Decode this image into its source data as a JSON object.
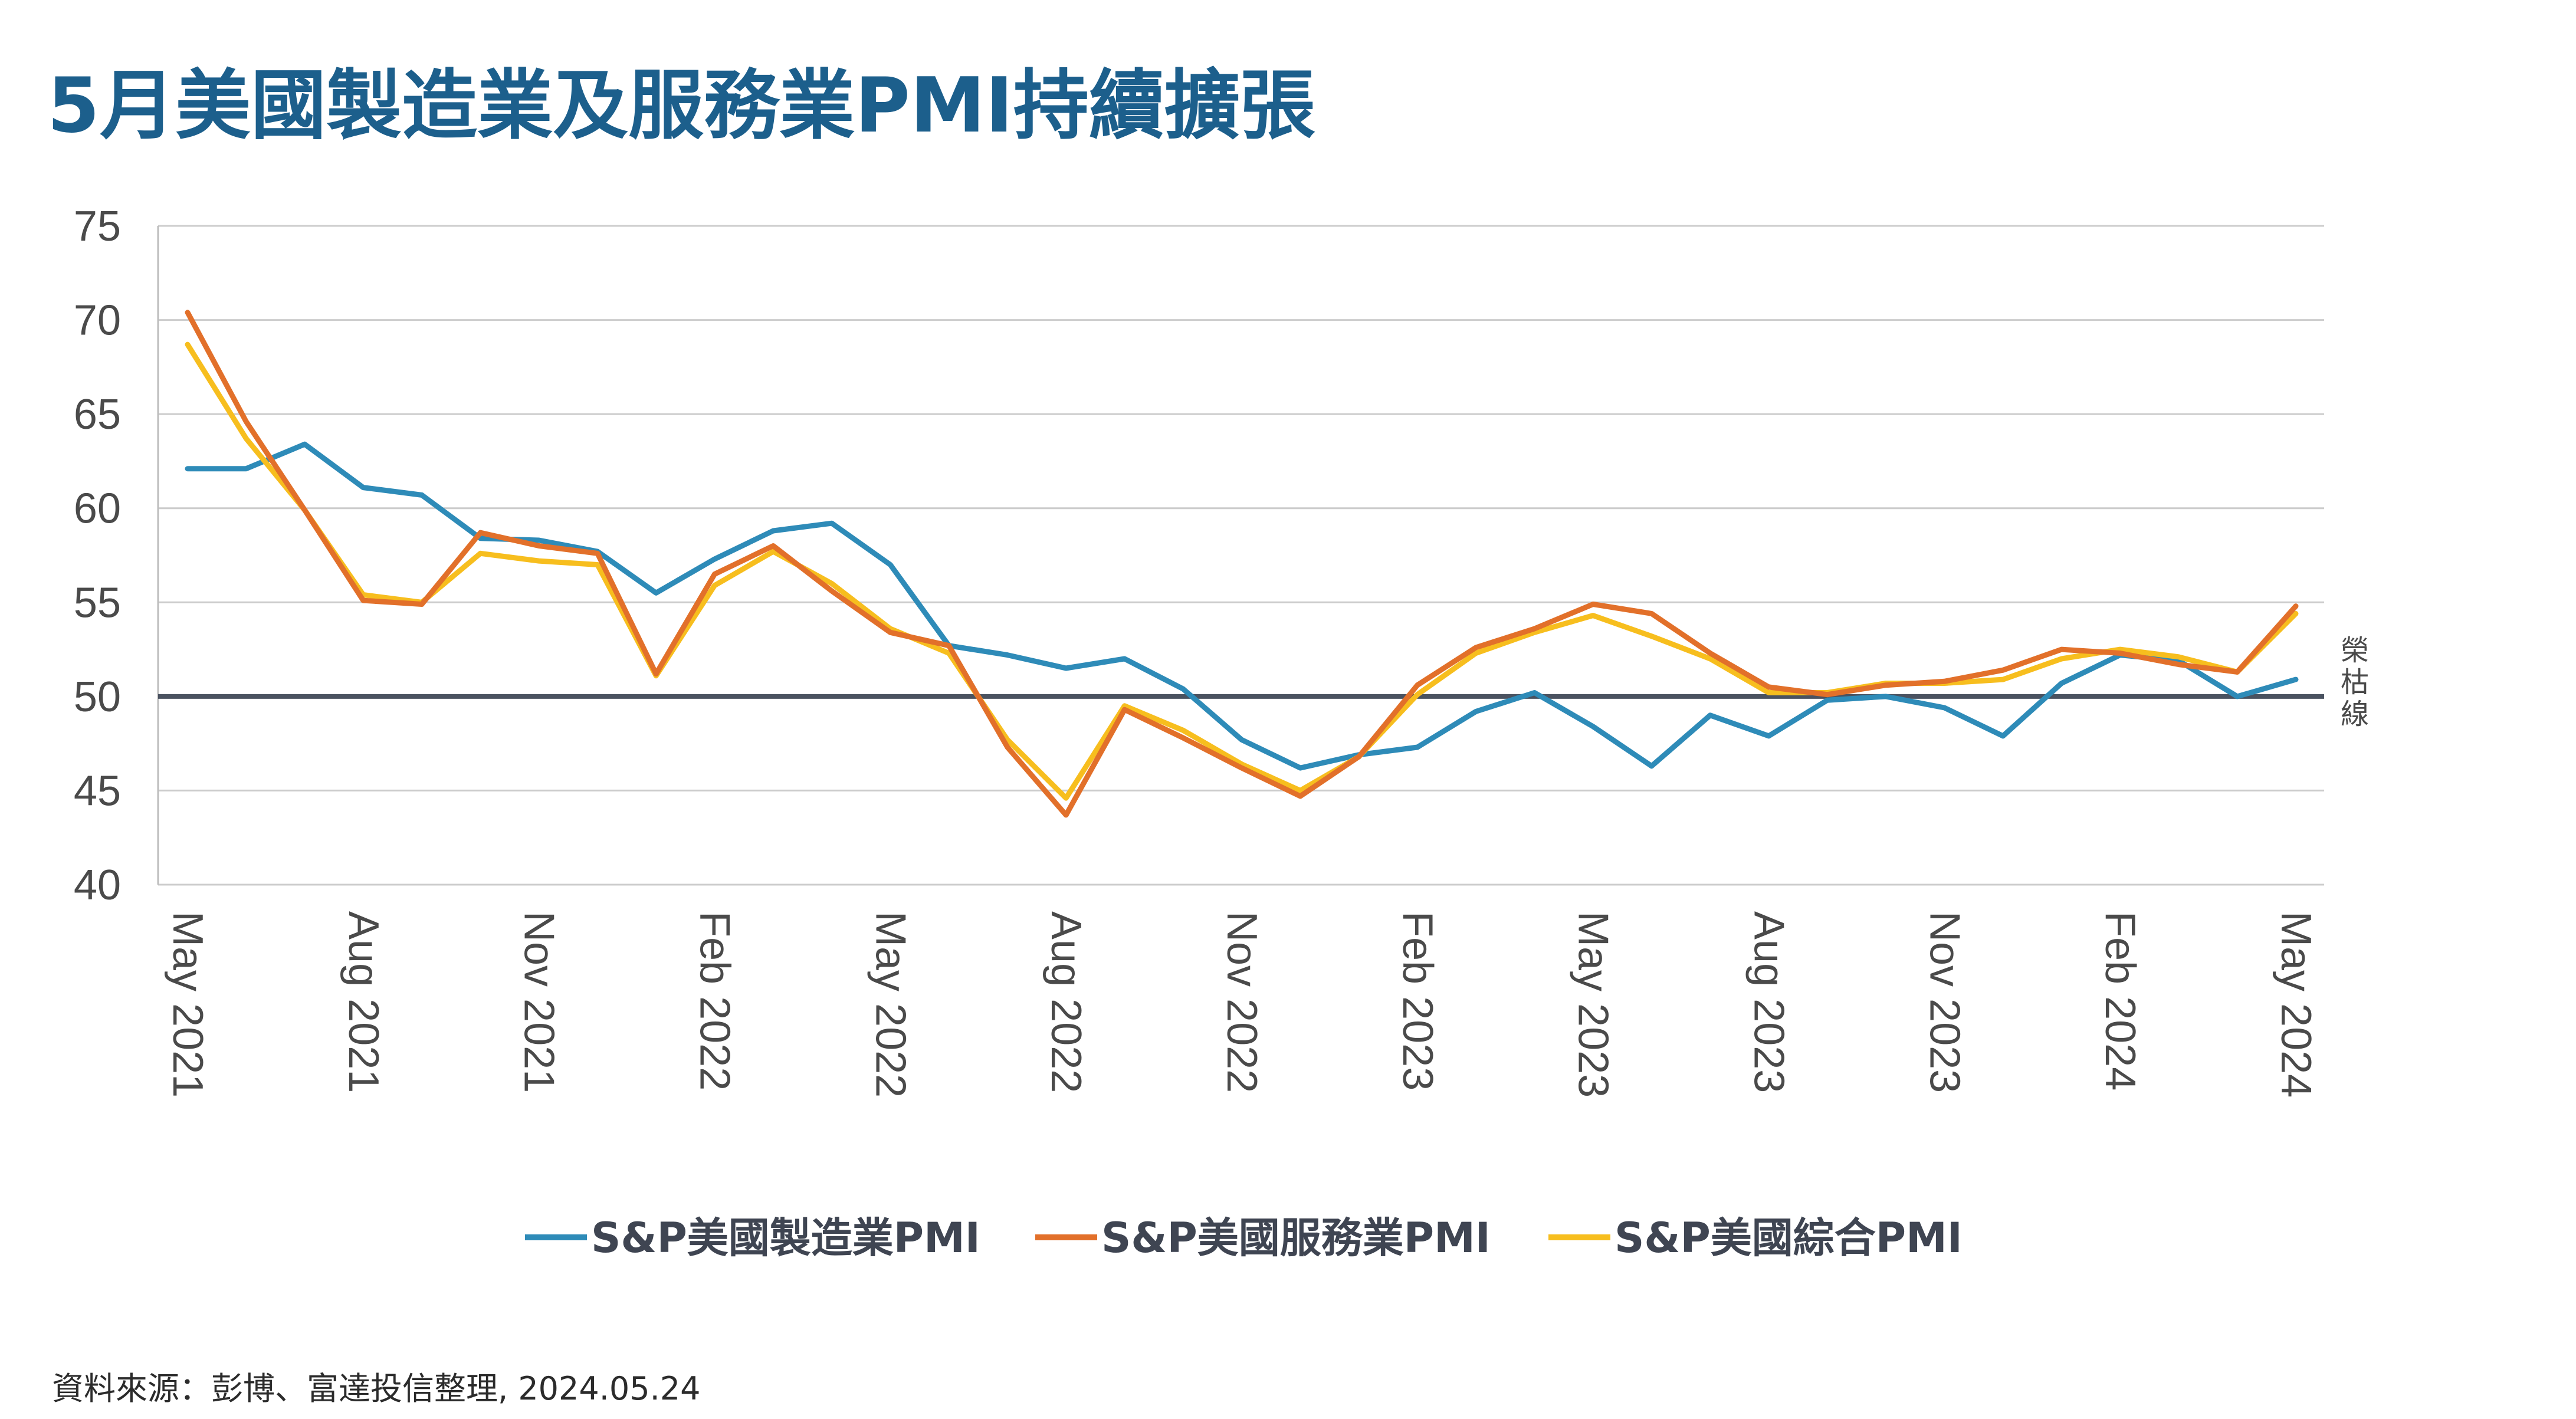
{
  "title": "5月美國製造業及服務業PMI持續擴張",
  "source": "資料來源：彭博、富達投信整理, 2024.05.24",
  "chart_data": {
    "type": "line",
    "ylim": [
      40,
      75
    ],
    "yticks": [
      40,
      45,
      50,
      55,
      60,
      65,
      70,
      75
    ],
    "xticks": [
      {
        "index": 0,
        "label": "May 2021"
      },
      {
        "index": 3,
        "label": "Aug 2021"
      },
      {
        "index": 6,
        "label": "Nov 2021"
      },
      {
        "index": 9,
        "label": "Feb 2022"
      },
      {
        "index": 12,
        "label": "May 2022"
      },
      {
        "index": 15,
        "label": "Aug 2022"
      },
      {
        "index": 18,
        "label": "Nov 2022"
      },
      {
        "index": 21,
        "label": "Feb 2023"
      },
      {
        "index": 24,
        "label": "May 2023"
      },
      {
        "index": 27,
        "label": "Aug 2023"
      },
      {
        "index": 30,
        "label": "Nov 2023"
      },
      {
        "index": 33,
        "label": "Feb 2024"
      },
      {
        "index": 36,
        "label": "May 2024"
      }
    ],
    "reference_line": {
      "value": 50,
      "label": "榮枯線",
      "color": "#4a5260"
    },
    "grid": true,
    "legend_position": "bottom",
    "series": [
      {
        "name": "S&P美國製造業PMI",
        "color": "#2e8bb8",
        "values": [
          62.1,
          62.1,
          63.4,
          61.1,
          60.7,
          58.4,
          58.3,
          57.7,
          55.5,
          57.3,
          58.8,
          59.2,
          57.0,
          52.7,
          52.2,
          51.5,
          52.0,
          50.4,
          47.7,
          46.2,
          46.9,
          47.3,
          49.2,
          50.2,
          48.4,
          46.3,
          49.0,
          47.9,
          49.8,
          50.0,
          49.4,
          47.9,
          50.7,
          52.2,
          51.9,
          50.0,
          50.9
        ]
      },
      {
        "name": "S&P美國服務業PMI",
        "color": "#e2702a",
        "values": [
          70.4,
          64.6,
          59.9,
          55.1,
          54.9,
          58.7,
          58.0,
          57.6,
          51.2,
          56.5,
          58.0,
          55.6,
          53.4,
          52.7,
          47.3,
          43.7,
          49.3,
          47.8,
          46.2,
          44.7,
          46.8,
          50.6,
          52.6,
          53.6,
          54.9,
          54.4,
          52.3,
          50.5,
          50.1,
          50.6,
          50.8,
          51.4,
          52.5,
          52.3,
          51.7,
          51.3,
          54.8
        ]
      },
      {
        "name": "S&P美國綜合PMI",
        "color": "#f7be1e",
        "values": [
          68.7,
          63.7,
          59.9,
          55.4,
          55.0,
          57.6,
          57.2,
          57.0,
          51.1,
          55.9,
          57.7,
          56.0,
          53.6,
          52.3,
          47.7,
          44.6,
          49.5,
          48.2,
          46.4,
          45.0,
          46.8,
          50.1,
          52.3,
          53.4,
          54.3,
          53.2,
          52.0,
          50.2,
          50.2,
          50.7,
          50.7,
          50.9,
          52.0,
          52.5,
          52.1,
          51.3,
          54.4
        ]
      }
    ]
  }
}
